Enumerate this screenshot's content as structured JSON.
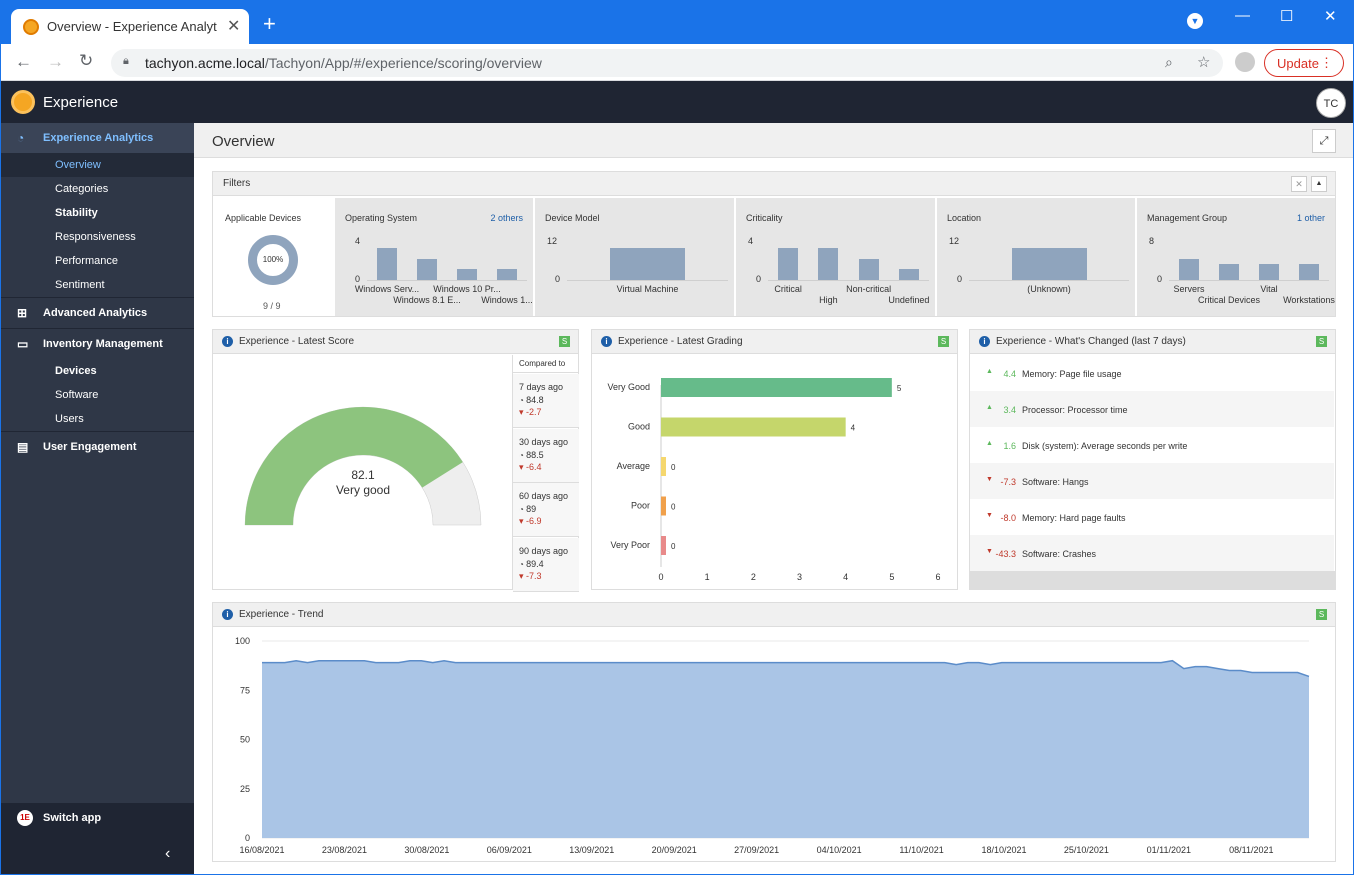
{
  "browser": {
    "tab_title": "Overview - Experience Analytics - ",
    "url_host": "tachyon.acme.local",
    "url_path": "/Tachyon/App/#/experience/scoring/overview",
    "update_label": "Update"
  },
  "app": {
    "name": "Experience",
    "user_initials": "TC"
  },
  "sidebar": {
    "experience_analytics": "Experience Analytics",
    "items": [
      "Overview",
      "Categories",
      "Stability",
      "Responsiveness",
      "Performance",
      "Sentiment"
    ],
    "advanced_analytics": "Advanced Analytics",
    "inventory_management": "Inventory Management",
    "inventory_items": [
      "Devices",
      "Software",
      "Users"
    ],
    "user_engagement": "User Engagement",
    "switch_app": "Switch app"
  },
  "page": {
    "title": "Overview"
  },
  "filters": {
    "title": "Filters",
    "applicable": {
      "label": "Applicable Devices",
      "percent": "100%",
      "count": "9 / 9"
    },
    "cells": [
      {
        "label": "Operating System",
        "other": "2 others",
        "ymax": "4",
        "zero": "0",
        "values": [
          3,
          2,
          1,
          1
        ],
        "cats": [
          "Windows Serv...",
          "Windows 8.1 E...",
          "Windows 10 Pr...",
          "Windows 1..."
        ]
      },
      {
        "label": "Device Model",
        "other": "",
        "ymax": "12",
        "zero": "0",
        "values": [
          9
        ],
        "cats": [
          "Virtual Machine"
        ]
      },
      {
        "label": "Criticality",
        "other": "",
        "ymax": "4",
        "zero": "0",
        "values": [
          3,
          3,
          2,
          1
        ],
        "cats": [
          "Critical",
          "High",
          "Non-critical",
          "Undefined"
        ]
      },
      {
        "label": "Location",
        "other": "",
        "ymax": "12",
        "zero": "0",
        "values": [
          9
        ],
        "cats": [
          "(Unknown)"
        ]
      },
      {
        "label": "Management Group",
        "other": "1 other",
        "ymax": "8",
        "zero": "0",
        "values": [
          4,
          3,
          3,
          3
        ],
        "cats": [
          "Servers",
          "Critical Devices",
          "Vital",
          "Workstations"
        ]
      }
    ]
  },
  "latest_score": {
    "title": "Experience - Latest Score",
    "score": "82.1",
    "grade": "Very good",
    "fraction": 0.821,
    "compared_to": "Compared to",
    "comparisons": [
      {
        "period": "7 days ago",
        "value": "84.8",
        "delta": "-2.7"
      },
      {
        "period": "30 days ago",
        "value": "88.5",
        "delta": "-6.4"
      },
      {
        "period": "60 days ago",
        "value": "89",
        "delta": "-6.9"
      },
      {
        "period": "90 days ago",
        "value": "89.4",
        "delta": "-7.3"
      }
    ]
  },
  "latest_grading": {
    "title": "Experience - Latest Grading",
    "chart_data": {
      "type": "bar",
      "orientation": "horizontal",
      "categories": [
        "Very Good",
        "Good",
        "Average",
        "Poor",
        "Very Poor"
      ],
      "values": [
        5,
        4,
        0,
        0,
        0
      ],
      "colors": [
        "#66bb8a",
        "#c5d66b",
        "#f5d76e",
        "#f0a04b",
        "#e88a8a"
      ],
      "xlim": [
        0,
        6
      ],
      "xticks": [
        "0",
        "1",
        "2",
        "3",
        "4",
        "5",
        "6"
      ]
    }
  },
  "whats_changed": {
    "title": "Experience - What's Changed (last 7 days)",
    "items": [
      {
        "value": "4.4",
        "label": "Memory: Page file usage",
        "dir": "up"
      },
      {
        "value": "3.4",
        "label": "Processor: Processor time",
        "dir": "up"
      },
      {
        "value": "1.6",
        "label": "Disk (system): Average seconds per write",
        "dir": "up"
      },
      {
        "value": "-7.3",
        "label": "Software: Hangs",
        "dir": "down"
      },
      {
        "value": "-8.0",
        "label": "Memory: Hard page faults",
        "dir": "down"
      },
      {
        "value": "-43.3",
        "label": "Software: Crashes",
        "dir": "down"
      }
    ]
  },
  "trend": {
    "title": "Experience - Trend",
    "chart_data": {
      "type": "area",
      "ylim": [
        0,
        100
      ],
      "yticks": [
        "100",
        "75",
        "50",
        "25",
        "0"
      ],
      "xticks": [
        "16/08/2021",
        "23/08/2021",
        "30/08/2021",
        "06/09/2021",
        "13/09/2021",
        "20/09/2021",
        "27/09/2021",
        "04/10/2021",
        "11/10/2021",
        "18/10/2021",
        "25/10/2021",
        "01/11/2021",
        "08/11/2021"
      ],
      "values": [
        89,
        89,
        89,
        90,
        89,
        90,
        90,
        90,
        90,
        90,
        89,
        89,
        89,
        90,
        90,
        89,
        90,
        89,
        89,
        89,
        89,
        89,
        89,
        89,
        89,
        89,
        89,
        89,
        89,
        89,
        89,
        89,
        89,
        89,
        89,
        89,
        89,
        89,
        89,
        89,
        89,
        89,
        89,
        89,
        89,
        89,
        89,
        89,
        89,
        89,
        89,
        89,
        89,
        89,
        89,
        89,
        89,
        89,
        89,
        89,
        89,
        88,
        89,
        89,
        88,
        89,
        89,
        89,
        89,
        89,
        89,
        89,
        89,
        89,
        89,
        89,
        89,
        89,
        89,
        89,
        90,
        86,
        87,
        87,
        86,
        85,
        85,
        84,
        84,
        84,
        84,
        84,
        82
      ]
    }
  }
}
